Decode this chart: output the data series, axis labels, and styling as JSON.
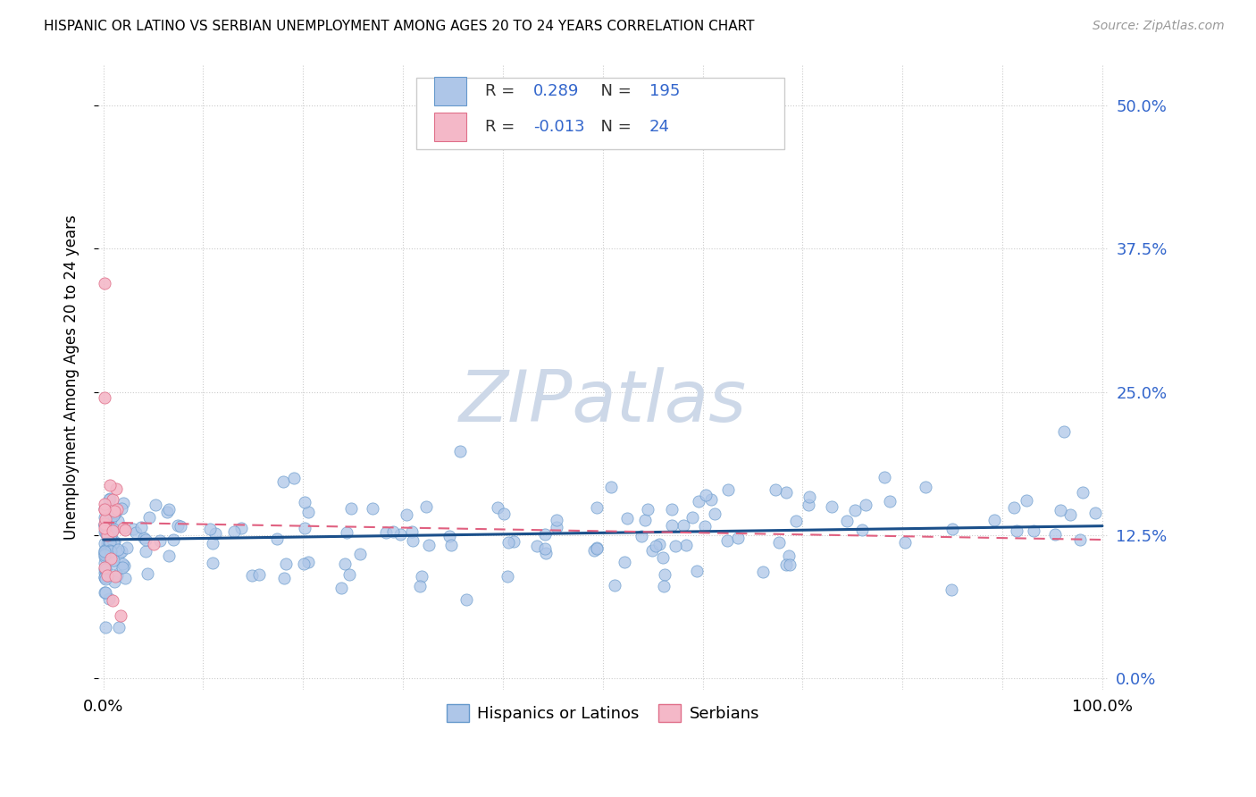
{
  "title": "HISPANIC OR LATINO VS SERBIAN UNEMPLOYMENT AMONG AGES 20 TO 24 YEARS CORRELATION CHART",
  "source": "Source: ZipAtlas.com",
  "ylabel": "Unemployment Among Ages 20 to 24 years",
  "hispanic_color": "#aec6e8",
  "hispanic_edge": "#6699cc",
  "serbian_color": "#f4b8c8",
  "serbian_edge": "#e0708a",
  "trendline_hispanic_color": "#1a4f8a",
  "trendline_serbian_color": "#e06080",
  "watermark_color": "#cdd8e8",
  "label_color": "#3366cc",
  "R_hispanic": "0.289",
  "N_hispanic": "195",
  "R_serbian": "-0.013",
  "N_serbian": "24",
  "yticks": [
    0.0,
    0.125,
    0.25,
    0.375,
    0.5
  ],
  "ytick_labels": [
    "0.0%",
    "12.5%",
    "25.0%",
    "37.5%",
    "50.0%"
  ],
  "ymin": -0.01,
  "ymax": 0.535,
  "xmin": -0.005,
  "xmax": 1.005
}
